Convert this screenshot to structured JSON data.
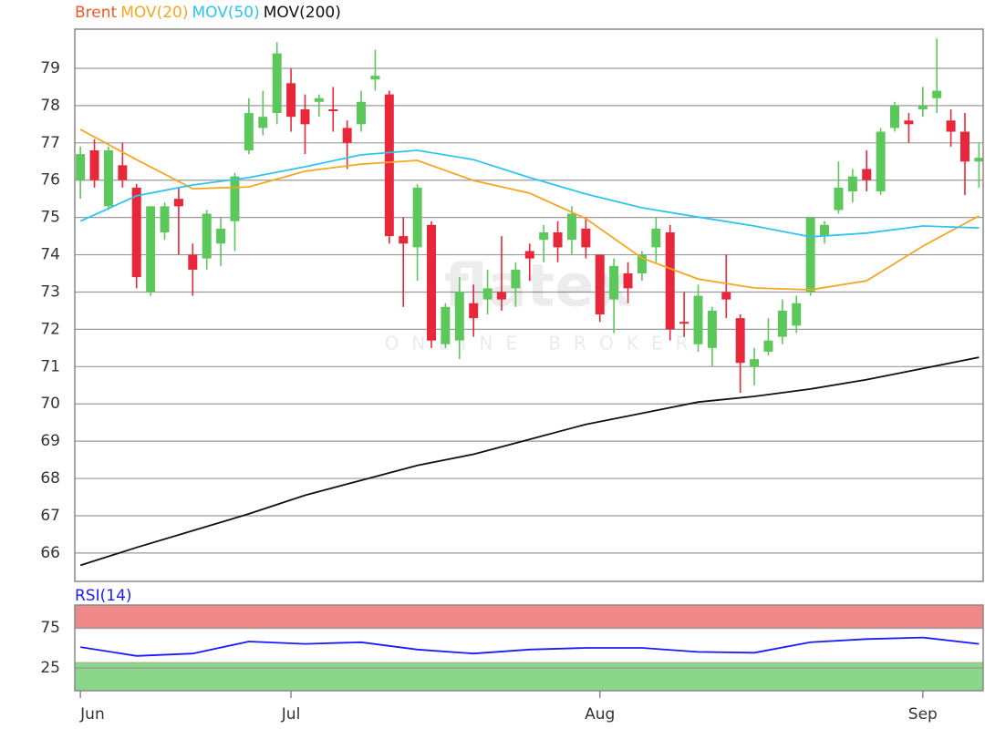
{
  "chart_data": [
    {
      "type": "candlestick",
      "watermark": [
        "flatex",
        "ONLINE BROKER"
      ],
      "categories": [
        "Jun",
        null,
        null,
        null,
        null,
        null,
        null,
        null,
        null,
        null,
        null,
        null,
        null,
        null,
        null,
        "Jul",
        null,
        null,
        null,
        null,
        null,
        null,
        null,
        null,
        null,
        null,
        null,
        null,
        null,
        null,
        null,
        null,
        null,
        null,
        null,
        null,
        null,
        "Aug",
        null,
        null,
        null,
        null,
        null,
        null,
        null,
        null,
        null,
        null,
        null,
        null,
        null,
        null,
        null,
        null,
        null,
        null,
        null,
        null,
        null,
        null,
        "Sep",
        null,
        null,
        null,
        null
      ],
      "name": "Brent",
      "name_color": "#f05a28",
      "up_color": "#5cc85c",
      "down_color": "#e8283a",
      "open": [
        76.0,
        76.8,
        75.3,
        76.4,
        75.8,
        73.0,
        74.6,
        75.5,
        74.0,
        73.9,
        74.3,
        74.9,
        76.8,
        77.4,
        77.8,
        78.6,
        77.9,
        78.1,
        77.9,
        77.4,
        77.5,
        78.7,
        78.3,
        74.5,
        74.2,
        74.8,
        71.6,
        71.7,
        72.7,
        72.8,
        73.0,
        73.1,
        74.1,
        74.4,
        74.6,
        74.4,
        74.7,
        74.0,
        72.8,
        73.5,
        73.5,
        74.2,
        74.6,
        72.2,
        71.6,
        71.5,
        73.0,
        72.3,
        71.0,
        71.4,
        71.8,
        72.1,
        73.0,
        74.5,
        75.2,
        75.7,
        76.3,
        75.7,
        77.4,
        77.6,
        77.9,
        78.2,
        77.6,
        77.3,
        76.5
      ],
      "high": [
        76.9,
        77.1,
        76.9,
        77.0,
        75.9,
        75.3,
        75.4,
        75.8,
        74.3,
        75.2,
        75.0,
        76.2,
        78.2,
        78.4,
        79.7,
        79.0,
        78.3,
        78.3,
        78.5,
        77.6,
        78.4,
        79.5,
        78.4,
        75.0,
        75.9,
        74.9,
        72.7,
        73.4,
        73.2,
        73.6,
        74.5,
        73.8,
        74.3,
        74.8,
        74.9,
        75.3,
        75.0,
        74.0,
        73.9,
        73.8,
        74.1,
        75.0,
        74.8,
        73.0,
        73.2,
        72.6,
        74.0,
        72.4,
        71.5,
        72.3,
        72.8,
        72.9,
        75.0,
        74.9,
        76.5,
        76.3,
        76.8,
        77.4,
        78.1,
        77.8,
        78.5,
        79.8,
        77.9,
        77.8,
        77.0
      ],
      "low": [
        75.5,
        75.8,
        75.2,
        75.8,
        73.1,
        72.9,
        74.4,
        74.0,
        72.9,
        73.6,
        73.7,
        74.1,
        76.7,
        77.2,
        77.5,
        77.3,
        76.7,
        77.7,
        77.3,
        76.3,
        77.3,
        78.4,
        74.3,
        72.6,
        73.3,
        71.5,
        71.5,
        71.2,
        71.8,
        72.4,
        72.5,
        72.6,
        73.3,
        73.8,
        73.8,
        74.0,
        73.9,
        72.2,
        71.9,
        72.7,
        73.3,
        73.8,
        71.7,
        71.8,
        71.4,
        71.0,
        72.3,
        70.3,
        70.5,
        71.3,
        71.6,
        71.9,
        72.9,
        74.3,
        75.1,
        75.4,
        75.7,
        75.6,
        77.3,
        77.0,
        77.7,
        77.8,
        76.9,
        75.6,
        75.8
      ],
      "close": [
        76.7,
        76.0,
        76.8,
        76.0,
        73.4,
        75.3,
        75.3,
        75.3,
        73.6,
        75.1,
        74.7,
        76.1,
        77.8,
        77.7,
        79.4,
        77.7,
        77.5,
        78.2,
        77.85,
        77.0,
        78.1,
        78.8,
        74.5,
        74.3,
        75.8,
        71.7,
        72.6,
        73.0,
        72.3,
        73.1,
        72.8,
        73.6,
        73.9,
        74.6,
        74.2,
        75.1,
        74.2,
        72.4,
        73.7,
        73.1,
        74.0,
        74.7,
        72.0,
        72.15,
        72.9,
        72.5,
        72.8,
        71.1,
        71.2,
        71.7,
        72.5,
        72.7,
        75.0,
        74.8,
        75.8,
        76.1,
        76.0,
        77.3,
        78.0,
        77.5,
        78.0,
        78.4,
        77.3,
        76.5,
        76.6
      ],
      "series": [
        {
          "name": "MOV(20)",
          "color": "#f5a623",
          "x": [
            0,
            4,
            8,
            12,
            16,
            20,
            24,
            28,
            32,
            36,
            40,
            44,
            48,
            52,
            56,
            60,
            64
          ],
          "values": [
            77.36,
            76.55,
            75.77,
            75.82,
            76.24,
            76.43,
            76.53,
            75.99,
            75.65,
            74.97,
            73.91,
            73.35,
            73.11,
            73.06,
            73.3,
            74.23,
            75.04
          ]
        },
        {
          "name": "MOV(50)",
          "color": "#2ec4ef",
          "x": [
            0,
            4,
            8,
            12,
            16,
            20,
            24,
            28,
            32,
            36,
            40,
            44,
            48,
            52,
            56,
            60,
            64
          ],
          "values": [
            74.9,
            75.58,
            75.87,
            76.07,
            76.36,
            76.68,
            76.8,
            76.55,
            76.07,
            75.63,
            75.26,
            75.01,
            74.77,
            74.48,
            74.58,
            74.77,
            74.72
          ]
        },
        {
          "name": "MOV(200)",
          "color": "#111111",
          "x": [
            0,
            4,
            8,
            12,
            16,
            20,
            24,
            28,
            32,
            36,
            40,
            44,
            48,
            52,
            56,
            60,
            64
          ],
          "values": [
            65.67,
            66.15,
            66.6,
            67.05,
            67.55,
            67.95,
            68.35,
            68.65,
            69.05,
            69.45,
            69.75,
            70.05,
            70.2,
            70.4,
            70.65,
            70.95,
            71.25
          ]
        }
      ],
      "xlim": [
        -0.4,
        64.3
      ],
      "ylim": [
        65.24,
        80.05
      ],
      "yticks": [
        66,
        67,
        68,
        69,
        70,
        71,
        72,
        73,
        74,
        75,
        76,
        77,
        78,
        79
      ],
      "grid": true
    },
    {
      "type": "line",
      "series": [
        {
          "name": "RSI(14)",
          "color": "#1a1aff",
          "x": [
            0,
            4,
            8,
            12,
            16,
            20,
            24,
            28,
            32,
            36,
            40,
            44,
            48,
            52,
            56,
            60,
            64
          ],
          "values": [
            51,
            40,
            43,
            58,
            55,
            57,
            48,
            43,
            48,
            50,
            50,
            45,
            44,
            57,
            61,
            63,
            55
          ]
        }
      ],
      "bands": [
        {
          "range": [
            74,
            103.4
          ],
          "color": "#f08a8a"
        },
        {
          "range": [
            -3.4,
            32
          ],
          "color": "#8ad68a"
        }
      ],
      "xlim": [
        -0.4,
        64.3
      ],
      "ylim": [
        -3.4,
        103.4
      ],
      "yticks": [
        25,
        75
      ],
      "grid": true
    }
  ]
}
